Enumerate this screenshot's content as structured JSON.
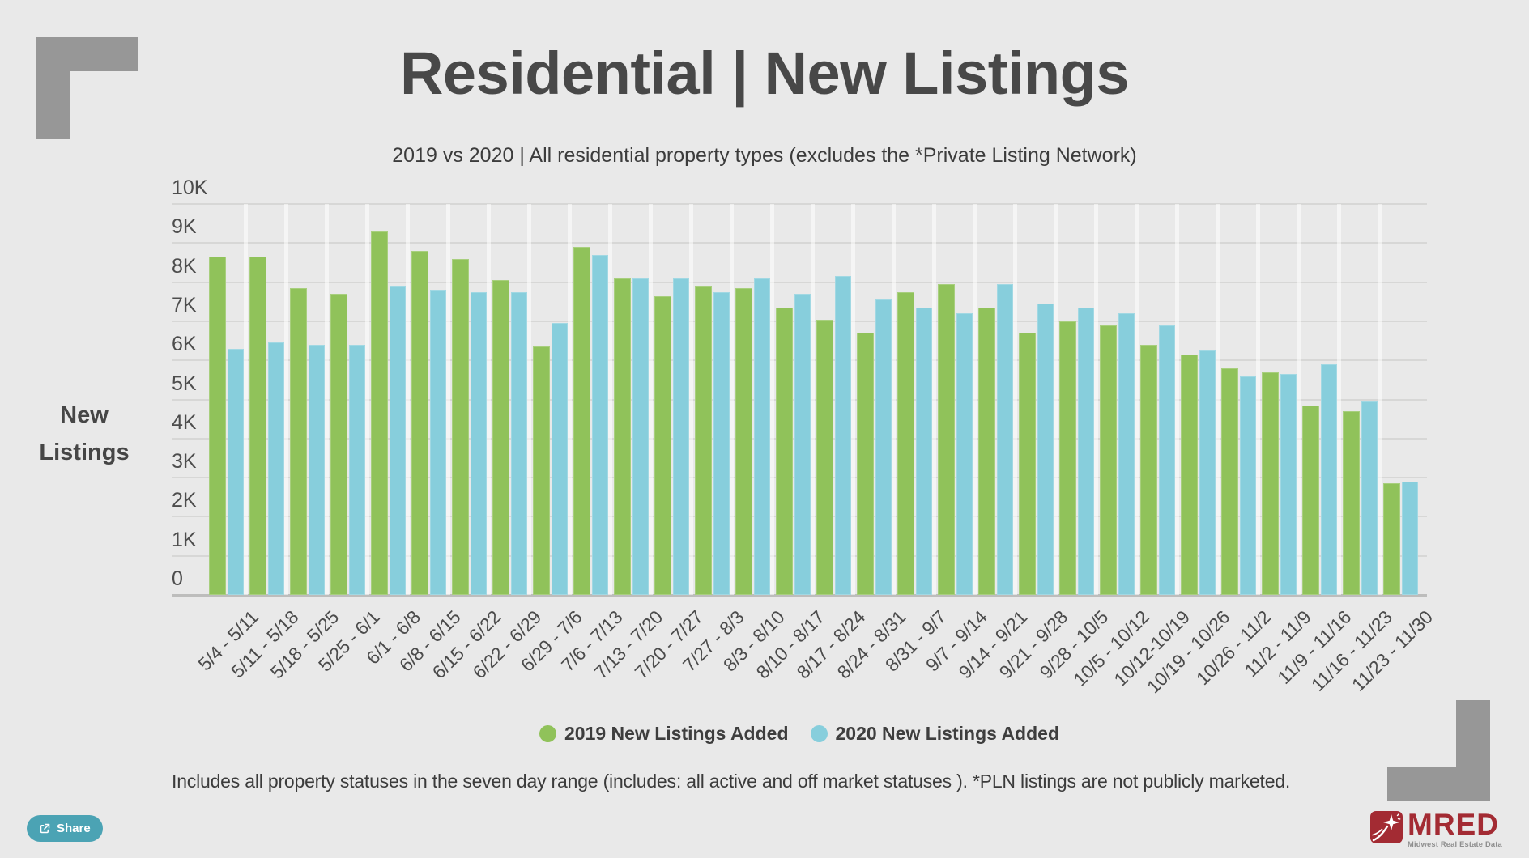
{
  "page": {
    "background": "#e9e9e9"
  },
  "header": {
    "title": "Residential | New Listings",
    "subtitle": "2019 vs 2020 | All residential property types (excludes the *Private Listing Network)"
  },
  "chart_data": {
    "type": "bar",
    "title": "Residential | New Listings",
    "subtitle": "2019 vs 2020 | All residential property types (excludes the *Private Listing Network)",
    "xlabel": "",
    "ylabel": "New Listings",
    "ylim": [
      0,
      10000
    ],
    "ytick_interval": 1000,
    "ytick_labels": [
      "0",
      "1K",
      "2K",
      "3K",
      "4K",
      "5K",
      "6K",
      "7K",
      "8K",
      "9K",
      "10K"
    ],
    "grid": "horizontal",
    "legend_position": "bottom-center",
    "categories": [
      "5/4 - 5/11",
      "5/11 - 5/18",
      "5/18 - 5/25",
      "5/25 - 6/1",
      "6/1 - 6/8",
      "6/8 - 6/15",
      "6/15 - 6/22",
      "6/22 - 6/29",
      "6/29 - 7/6",
      "7/6 - 7/13",
      "7/13 - 7/20",
      "7/20 - 7/27",
      "7/27 - 8/3",
      "8/3 - 8/10",
      "8/10 - 8/17",
      "8/17 - 8/24",
      "8/24 - 8/31",
      "8/31 - 9/7",
      "9/7 - 9/14",
      "9/14 - 9/21",
      "9/21 - 9/28",
      "9/28 - 10/5",
      "10/5 - 10/12",
      "10/12-10/19",
      "10/19 - 10/26",
      "10/26 - 11/2",
      "11/2 - 11/9",
      "11/9 - 11/16",
      "11/16 - 11/23",
      "11/23 - 11/30"
    ],
    "series": [
      {
        "name": "2019 New Listings Added",
        "color": "#90c25a",
        "values": [
          8650,
          8650,
          7850,
          7700,
          9300,
          8800,
          8600,
          8050,
          6350,
          8900,
          8100,
          7650,
          7900,
          7850,
          7350,
          7050,
          6700,
          7750,
          7950,
          7350,
          6700,
          7000,
          6900,
          6400,
          6150,
          5800,
          5700,
          4850,
          4700,
          2850
        ]
      },
      {
        "name": "2020 New Listings Added",
        "color": "#87cedc",
        "values": [
          6300,
          6450,
          6400,
          6400,
          7900,
          7800,
          7750,
          7750,
          6950,
          8700,
          8100,
          8100,
          7750,
          8100,
          7700,
          8150,
          7550,
          7350,
          7200,
          7950,
          7450,
          7350,
          7200,
          6900,
          6250,
          5600,
          5650,
          5900,
          4950,
          2900
        ]
      }
    ]
  },
  "footer": {
    "note": "Includes all property statuses in the seven day range (includes:  all active and off market statuses ).  *PLN listings are not publicly marketed."
  },
  "share_button": {
    "label": "Share",
    "background": "#4ba3b4"
  },
  "logo": {
    "wordmark": "MRED",
    "tagline": "Midwest Real Estate Data",
    "color": "#a32b33"
  }
}
